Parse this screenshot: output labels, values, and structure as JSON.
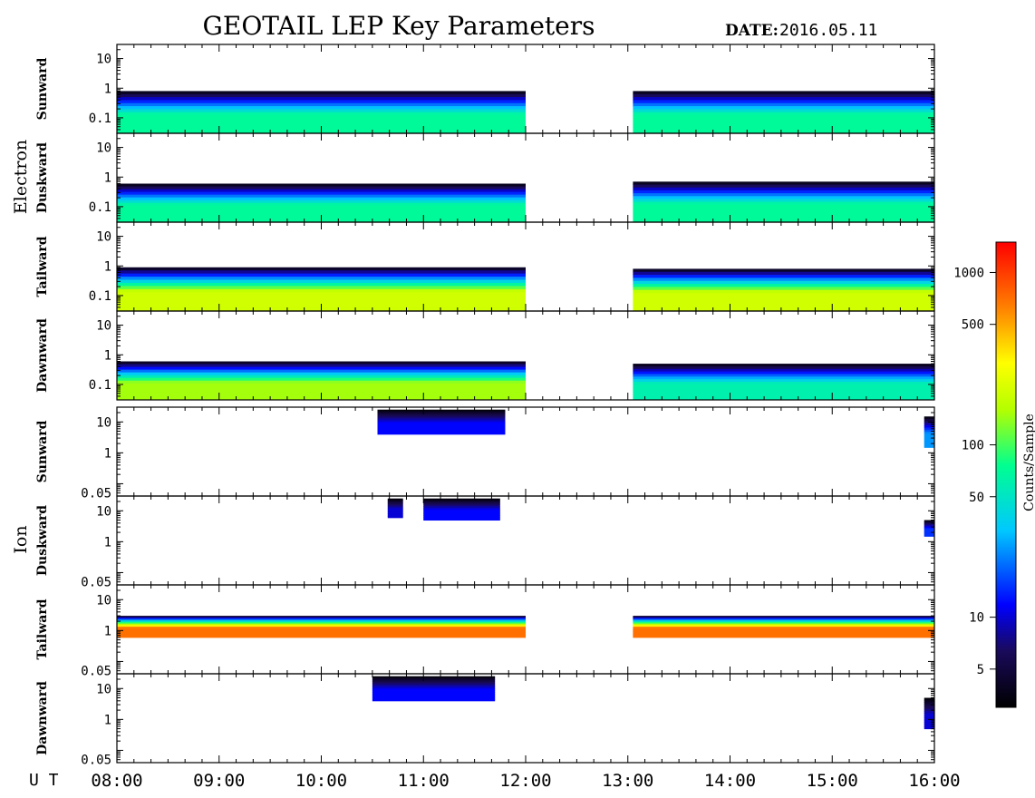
{
  "header": {
    "title": "GEOTAIL LEP Key Parameters",
    "date_label": "DATE:",
    "date_value": "2016.05.11"
  },
  "groups": [
    {
      "label": "Electron"
    },
    {
      "label": "Ion"
    }
  ],
  "colorbar": {
    "label": "Counts/Sample",
    "scale": "log",
    "range": [
      3,
      1500
    ],
    "ticks": [
      {
        "value": 5,
        "label": "5"
      },
      {
        "value": 10,
        "label": "10"
      },
      {
        "value": 50,
        "label": "50"
      },
      {
        "value": 100,
        "label": "100"
      },
      {
        "value": 500,
        "label": "500"
      },
      {
        "value": 1000,
        "label": "1000"
      }
    ]
  },
  "time_axis": {
    "prefix": "U T",
    "range_hours": [
      8,
      16
    ],
    "ticks": [
      {
        "hour": 8,
        "label": "08:00"
      },
      {
        "hour": 9,
        "label": "09:00"
      },
      {
        "hour": 10,
        "label": "10:00"
      },
      {
        "hour": 11,
        "label": "11:00"
      },
      {
        "hour": 12,
        "label": "12:00"
      },
      {
        "hour": 13,
        "label": "13:00"
      },
      {
        "hour": 14,
        "label": "14:00"
      },
      {
        "hour": 15,
        "label": "15:00"
      },
      {
        "hour": 16,
        "label": "16:00"
      }
    ]
  },
  "chart_data": {
    "type": "heatmap",
    "title": "GEOTAIL LEP Key Parameters",
    "x_unit": "UT hour",
    "xlim": [
      8,
      16
    ],
    "y_scale": "log",
    "panels": [
      {
        "species": "Electron",
        "direction": "Sunward",
        "yticks": [
          "10",
          "1",
          "0.1"
        ],
        "ytick_values": [
          10,
          1,
          0.1
        ],
        "ylim": [
          0.03,
          30
        ],
        "gaps": [
          [
            12.0,
            13.05
          ]
        ],
        "coverage": [
          [
            8.0,
            12.0
          ],
          [
            13.05,
            16.0
          ]
        ],
        "segments": [
          {
            "t0": 8.0,
            "t1": 12.0,
            "floor": 0.03,
            "top": 0.8,
            "peak": 70
          },
          {
            "t0": 13.05,
            "t1": 16.0,
            "floor": 0.03,
            "top": 0.8,
            "peak": 70
          }
        ]
      },
      {
        "species": "Electron",
        "direction": "Duskward",
        "yticks": [
          "10",
          "1",
          "0.1"
        ],
        "ytick_values": [
          10,
          1,
          0.1
        ],
        "ylim": [
          0.03,
          30
        ],
        "gaps": [
          [
            12.0,
            13.05
          ]
        ],
        "coverage": [
          [
            8.0,
            12.0
          ],
          [
            13.05,
            16.0
          ]
        ],
        "segments": [
          {
            "t0": 8.0,
            "t1": 12.0,
            "floor": 0.03,
            "top": 0.6,
            "peak": 70
          },
          {
            "t0": 13.05,
            "t1": 16.0,
            "floor": 0.03,
            "top": 0.7,
            "peak": 70
          }
        ]
      },
      {
        "species": "Electron",
        "direction": "Tailward",
        "yticks": [
          "10",
          "1",
          "0.1"
        ],
        "ytick_values": [
          10,
          1,
          0.1
        ],
        "ylim": [
          0.03,
          30
        ],
        "gaps": [
          [
            12.0,
            13.05
          ]
        ],
        "coverage": [
          [
            8.0,
            12.0
          ],
          [
            13.05,
            16.0
          ]
        ],
        "segments": [
          {
            "t0": 8.0,
            "t1": 12.0,
            "floor": 0.03,
            "top": 0.9,
            "peak": 200
          },
          {
            "t0": 13.05,
            "t1": 16.0,
            "floor": 0.03,
            "top": 0.8,
            "peak": 200
          }
        ]
      },
      {
        "species": "Electron",
        "direction": "Dawnward",
        "yticks": [
          "10",
          "1",
          "0.1"
        ],
        "ytick_values": [
          10,
          1,
          0.1
        ],
        "ylim": [
          0.03,
          30
        ],
        "gaps": [
          [
            12.0,
            13.05
          ]
        ],
        "coverage": [
          [
            8.0,
            12.0
          ],
          [
            13.05,
            16.0
          ]
        ],
        "segments": [
          {
            "t0": 8.0,
            "t1": 12.0,
            "floor": 0.03,
            "top": 0.6,
            "peak": 150
          },
          {
            "t0": 13.05,
            "t1": 16.0,
            "floor": 0.03,
            "top": 0.5,
            "peak": 60
          }
        ]
      },
      {
        "species": "Ion",
        "direction": "Sunward",
        "yticks": [
          "10",
          "1",
          "0.05"
        ],
        "ytick_values": [
          10,
          1,
          0.05
        ],
        "ylim": [
          0.04,
          30
        ],
        "coverage": [
          [
            8.0,
            12.0
          ],
          [
            13.05,
            16.0
          ]
        ],
        "segments": [
          {
            "t0": 10.55,
            "t1": 11.8,
            "floor": 4,
            "top": 25,
            "peak": 12
          },
          {
            "t0": 15.9,
            "t1": 16.0,
            "floor": 1.5,
            "top": 15,
            "peak": 25
          }
        ]
      },
      {
        "species": "Ion",
        "direction": "Duskward",
        "yticks": [
          "10",
          "1",
          "0.05"
        ],
        "ytick_values": [
          10,
          1,
          0.05
        ],
        "ylim": [
          0.04,
          30
        ],
        "coverage": [
          [
            8.0,
            12.0
          ],
          [
            13.05,
            16.0
          ]
        ],
        "segments": [
          {
            "t0": 10.65,
            "t1": 10.8,
            "floor": 6,
            "top": 25,
            "peak": 10
          },
          {
            "t0": 11.0,
            "t1": 11.75,
            "floor": 5,
            "top": 25,
            "peak": 12
          },
          {
            "t0": 15.9,
            "t1": 16.0,
            "floor": 1.5,
            "top": 5,
            "peak": 15
          }
        ]
      },
      {
        "species": "Ion",
        "direction": "Tailward",
        "yticks": [
          "10",
          "1",
          "0.05"
        ],
        "ytick_values": [
          10,
          1,
          0.05
        ],
        "ylim": [
          0.04,
          30
        ],
        "gaps": [
          [
            12.0,
            13.05
          ]
        ],
        "coverage": [
          [
            8.0,
            12.0
          ],
          [
            13.05,
            16.0
          ]
        ],
        "segments": [
          {
            "t0": 8.0,
            "t1": 12.0,
            "floor": 0.6,
            "top": 3,
            "peak": 700
          },
          {
            "t0": 13.05,
            "t1": 16.0,
            "floor": 0.6,
            "top": 3,
            "peak": 700
          }
        ]
      },
      {
        "species": "Ion",
        "direction": "Dawnward",
        "yticks": [
          "10",
          "1",
          "0.05"
        ],
        "ytick_values": [
          10,
          1,
          0.05
        ],
        "ylim": [
          0.04,
          30
        ],
        "coverage": [
          [
            8.0,
            12.0
          ],
          [
            13.05,
            16.0
          ]
        ],
        "segments": [
          {
            "t0": 10.5,
            "t1": 11.7,
            "floor": 4,
            "top": 25,
            "peak": 12
          },
          {
            "t0": 15.9,
            "t1": 16.0,
            "floor": 0.5,
            "top": 5,
            "peak": 10
          }
        ]
      }
    ]
  }
}
